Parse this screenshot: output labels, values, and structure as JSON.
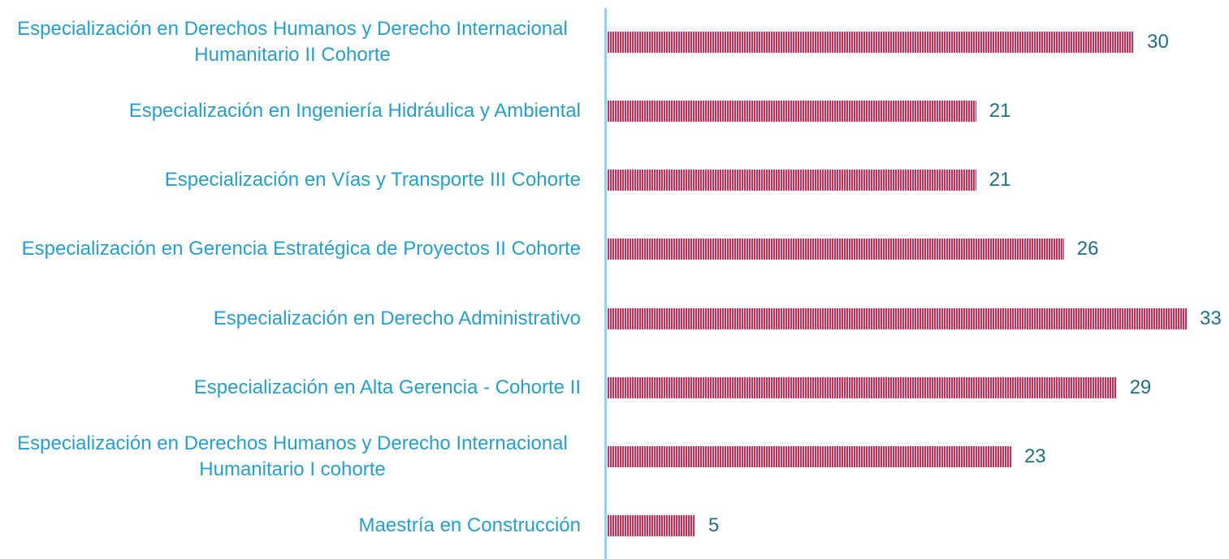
{
  "chart_data": {
    "type": "bar",
    "orientation": "horizontal",
    "categories": [
      "Especialización en Derechos Humanos y Derecho Internacional Humanitario II Cohorte",
      "Especialización en Ingeniería Hidráulica y Ambiental",
      "Especialización en Vías y Transporte III Cohorte",
      "Especialización en Gerencia Estratégica de Proyectos II Cohorte",
      "Especialización en Derecho Administrativo",
      "Especialización en Alta Gerencia - Cohorte II",
      "Especialización en Derechos Humanos y Derecho Internacional Humanitario I cohorte",
      "Maestría en Construcción"
    ],
    "values": [
      30,
      21,
      21,
      26,
      33,
      29,
      23,
      5
    ],
    "color": "#e0234e"
  }
}
